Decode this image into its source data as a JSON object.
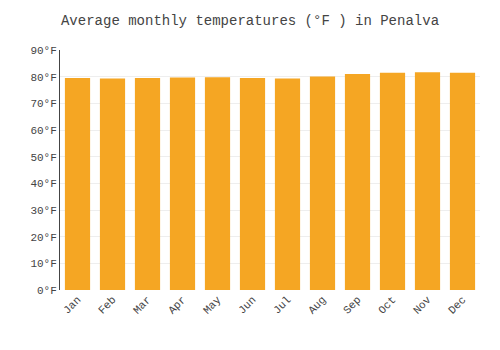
{
  "chart_data": {
    "type": "bar",
    "title": "Average monthly temperatures (°F ) in Penalva",
    "categories": [
      "Jan",
      "Feb",
      "Mar",
      "Apr",
      "May",
      "Jun",
      "Jul",
      "Aug",
      "Sep",
      "Oct",
      "Nov",
      "Dec"
    ],
    "values": [
      79.5,
      79.3,
      79.5,
      79.7,
      79.8,
      79.5,
      79.3,
      80.1,
      81.0,
      81.5,
      81.7,
      81.5
    ],
    "color": "#F5A623",
    "ylim": [
      0,
      90
    ],
    "yticks": [
      {
        "value": 0,
        "label": "0°F"
      },
      {
        "value": 10,
        "label": "10°F"
      },
      {
        "value": 20,
        "label": "20°F"
      },
      {
        "value": 30,
        "label": "30°F"
      },
      {
        "value": 40,
        "label": "40°F"
      },
      {
        "value": 50,
        "label": "50°F"
      },
      {
        "value": 60,
        "label": "60°F"
      },
      {
        "value": 70,
        "label": "70°F"
      },
      {
        "value": 80,
        "label": "80°F"
      },
      {
        "value": 90,
        "label": "90°F"
      }
    ],
    "grid": true
  }
}
